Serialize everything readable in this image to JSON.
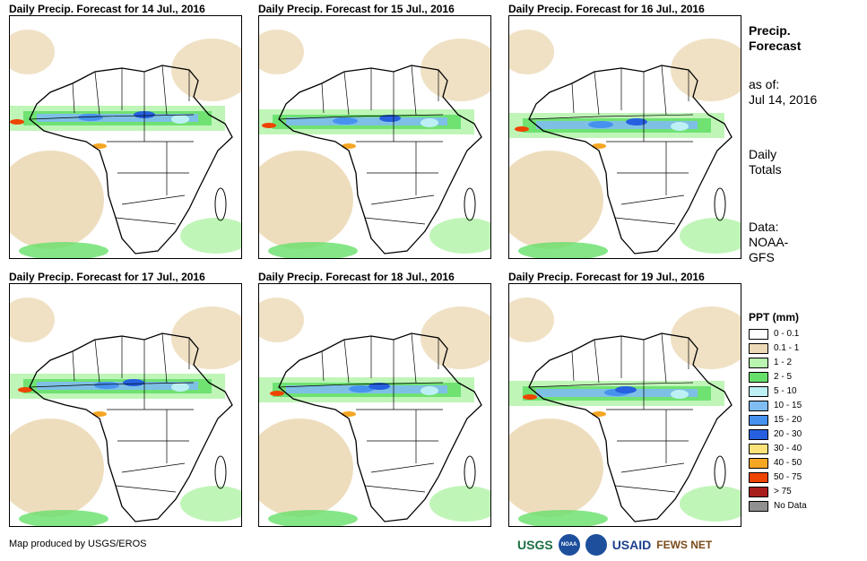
{
  "panels": [
    {
      "title": "Daily Precip. Forecast for 14 Jul., 2016"
    },
    {
      "title": "Daily Precip. Forecast for 15 Jul., 2016"
    },
    {
      "title": "Daily Precip. Forecast for 16 Jul., 2016"
    },
    {
      "title": "Daily Precip. Forecast for 17 Jul., 2016"
    },
    {
      "title": "Daily Precip. Forecast for 18 Jul., 2016"
    },
    {
      "title": "Daily Precip. Forecast for 19 Jul., 2016"
    }
  ],
  "sidebar": {
    "heading_line1": "Precip.",
    "heading_line2": "Forecast",
    "asof_line1": "as of:",
    "asof_line2": "Jul 14, 2016",
    "totals_line1": "Daily",
    "totals_line2": "Totals",
    "data_line1": "Data:",
    "data_line2": "NOAA-",
    "data_line3": "GFS"
  },
  "legend": {
    "title": "PPT (mm)",
    "items": [
      {
        "label": "0 - 0.1",
        "color": "#ffffff"
      },
      {
        "label": "0.1 - 1",
        "color": "#ecd9b6"
      },
      {
        "label": "1 - 2",
        "color": "#b9f4b0"
      },
      {
        "label": "2 - 5",
        "color": "#66e06a"
      },
      {
        "label": "5 - 10",
        "color": "#bdf0f4"
      },
      {
        "label": "10 - 15",
        "color": "#80bdf2"
      },
      {
        "label": "15 - 20",
        "color": "#4792ef"
      },
      {
        "label": "20 - 30",
        "color": "#2660e0"
      },
      {
        "label": "30 - 40",
        "color": "#fbe27a"
      },
      {
        "label": "40 - 50",
        "color": "#f5a623"
      },
      {
        "label": "50 - 75",
        "color": "#ee4400"
      },
      {
        "label": "> 75",
        "color": "#a81d1d"
      },
      {
        "label": "No Data",
        "color": "#909090"
      }
    ]
  },
  "footer": {
    "credit": "Map produced by USGS/EROS",
    "logos": [
      "USGS",
      "NOAA",
      "USAID",
      "FEWS NET"
    ]
  }
}
